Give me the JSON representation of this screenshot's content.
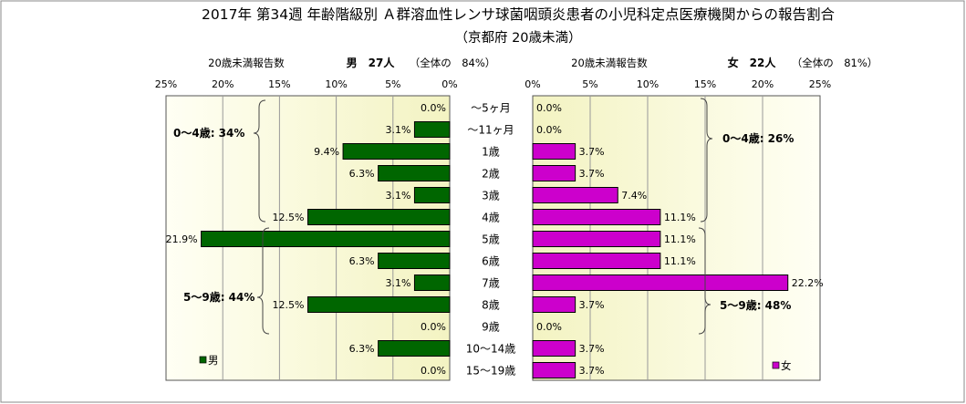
{
  "chart_data": {
    "type": "bar",
    "title": "2017年 第34週 年齢階級別 Ａ群溶血性レンサ球菌咽頭炎患者の小児科定点医療機関からの報告割合",
    "subtitle": "（京都府 20歳未満）",
    "categories": [
      "～5ヶ月",
      "～11ヶ月",
      "1歳",
      "2歳",
      "3歳",
      "4歳",
      "5歳",
      "6歳",
      "7歳",
      "8歳",
      "9歳",
      "10～14歳",
      "15～19歳"
    ],
    "xlim": [
      0,
      25
    ],
    "ticks": [
      "25%",
      "20%",
      "15%",
      "10%",
      "5%",
      "0%"
    ],
    "ticks_right": [
      "0%",
      "5%",
      "10%",
      "15%",
      "20%",
      "25%"
    ],
    "series": [
      {
        "name": "男",
        "side": "left",
        "color": "#006600",
        "values": [
          0.0,
          3.1,
          9.4,
          6.3,
          3.1,
          12.5,
          21.9,
          6.3,
          3.1,
          12.5,
          0.0,
          6.3,
          0.0
        ],
        "labels": [
          "0.0%",
          "3.1%",
          "9.4%",
          "6.3%",
          "3.1%",
          "12.5%",
          "21.9%",
          "6.3%",
          "3.1%",
          "12.5%",
          "0.0%",
          "6.3%",
          "0.0%"
        ],
        "header_label": "20歳未満報告数",
        "header_count": "男　27人",
        "header_share": "（全体の　84%）",
        "group_labels": [
          "0～4歳: 34%",
          "5～9歳: 44%"
        ]
      },
      {
        "name": "女",
        "side": "right",
        "color": "#cc00cc",
        "values": [
          0.0,
          0.0,
          3.7,
          3.7,
          7.4,
          11.1,
          11.1,
          11.1,
          22.2,
          3.7,
          0.0,
          3.7,
          3.7
        ],
        "labels": [
          "0.0%",
          "0.0%",
          "3.7%",
          "3.7%",
          "7.4%",
          "11.1%",
          "11.1%",
          "11.1%",
          "22.2%",
          "3.7%",
          "0.0%",
          "3.7%",
          "3.7%"
        ],
        "header_label": "20歳未満報告数",
        "header_count": "女　22人",
        "header_share": "（全体の　81%）",
        "group_labels": [
          "0～4歳: 26%",
          "5～9歳: 48%"
        ]
      }
    ],
    "grid": true,
    "legend": "bottom-corner"
  }
}
